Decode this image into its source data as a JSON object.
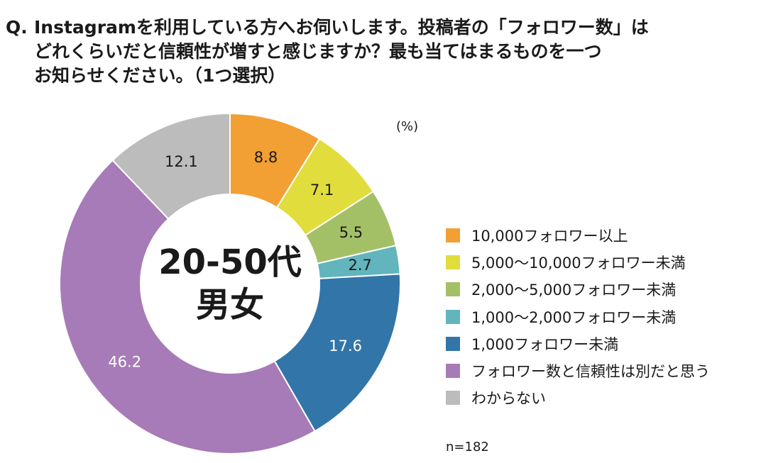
{
  "question": {
    "marker": "Q.",
    "lines": [
      "Instagramを利用している方へお伺いします。投稿者の「フォロワー数」は",
      "どれくらいだと信頼性が増すと感じますか？最も当てはまるものを一つ",
      "お知らせください。（1つ選択）"
    ]
  },
  "unit": "(%)",
  "sample_note": "n=182",
  "chart_data": {
    "type": "pie",
    "donut": true,
    "center_label": [
      "20-50代",
      "男女"
    ],
    "categories": [
      "10,000フォロワー以上",
      "5,000〜10,000フォロワー未満",
      "2,000〜5,000フォロワー未満",
      "1,000〜2,000フォロワー未満",
      "1,000フォロワー未満",
      "フォロワー数と信頼性は別だと思う",
      "わからない"
    ],
    "values": [
      8.8,
      7.1,
      5.5,
      2.7,
      17.6,
      46.2,
      12.1
    ],
    "value_labels": [
      "8.8",
      "7.1",
      "5.5",
      "2.7",
      "17.6",
      "46.2",
      "12.1"
    ],
    "colors": [
      "#F29F34",
      "#E0DD3D",
      "#A4C067",
      "#62B5BD",
      "#3275A8",
      "#A77BB7",
      "#BCBCBC"
    ],
    "label_colors": [
      "#1a1a1a",
      "#1a1a1a",
      "#1a1a1a",
      "#1a1a1a",
      "#ffffff",
      "#ffffff",
      "#1a1a1a"
    ],
    "legend_position": "right"
  }
}
